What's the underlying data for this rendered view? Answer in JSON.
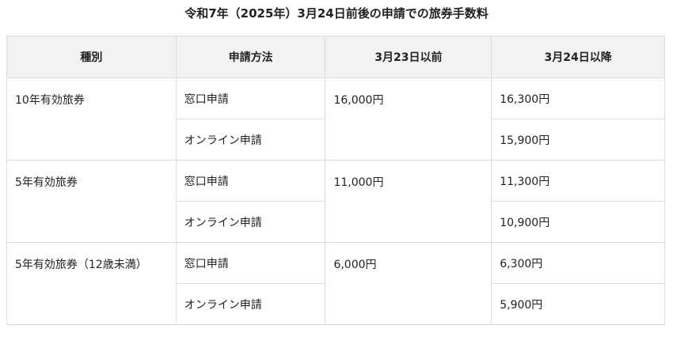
{
  "title": "令和7年（2025年）3月24日前後の申請での旅券手数料",
  "headers": [
    "種別",
    "申請方法",
    "3月23日以前",
    "3月24日以降"
  ],
  "groups": [
    {
      "type": "10年有効旅券",
      "before": "16,000円",
      "rows": [
        {
          "method": "窓口申請",
          "after": "16,300円"
        },
        {
          "method": "オンライン申請",
          "after": "15,900円"
        }
      ]
    },
    {
      "type": "5年有効旅券",
      "before": "11,000円",
      "rows": [
        {
          "method": "窓口申請",
          "after": "11,300円"
        },
        {
          "method": "オンライン申請",
          "after": "10,900円"
        }
      ]
    },
    {
      "type": "5年有効旅券（12歳未満）",
      "before": "6,000円",
      "rows": [
        {
          "method": "窓口申請",
          "after": "6,300円"
        },
        {
          "method": "オンライン申請",
          "after": "5,900円"
        }
      ]
    }
  ]
}
